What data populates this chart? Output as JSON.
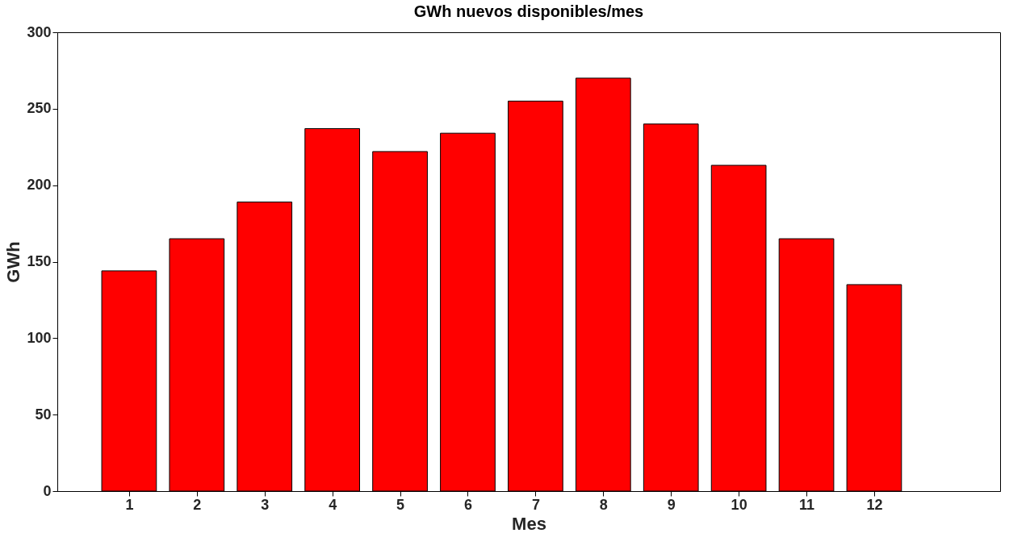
{
  "chart_data": {
    "type": "bar",
    "title": "GWh nuevos disponibles/mes",
    "xlabel": "Mes",
    "ylabel": "GWh",
    "x": [
      1,
      2,
      3,
      4,
      5,
      6,
      7,
      8,
      9,
      10,
      11,
      12
    ],
    "values": [
      144,
      165,
      189,
      237,
      222,
      234,
      255,
      270,
      240,
      213,
      165,
      135
    ],
    "color": "#ff0000",
    "xlim": [
      0,
      13.8
    ],
    "xticks": [
      1,
      2,
      3,
      4,
      5,
      6,
      7,
      8,
      9,
      10,
      11,
      12
    ],
    "ylim": [
      0,
      300
    ],
    "yticks": [
      0,
      50,
      100,
      150,
      200,
      250,
      300
    ],
    "grid": false
  }
}
